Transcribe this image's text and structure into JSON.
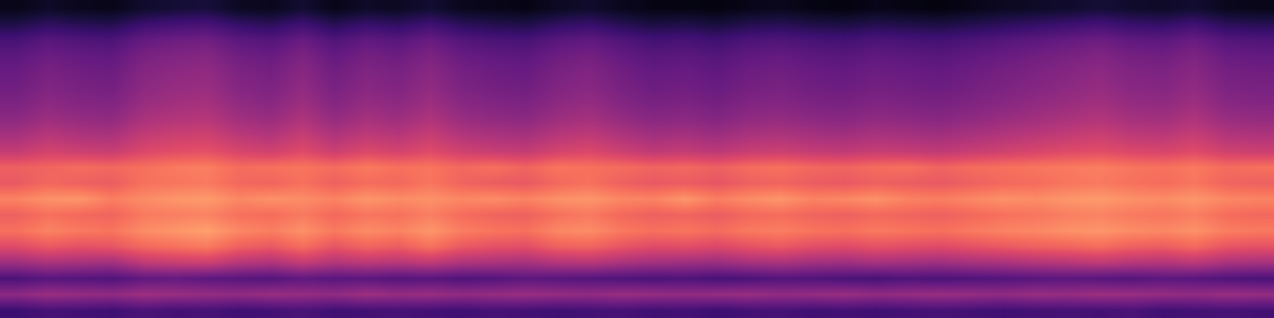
{
  "chart_data": {
    "type": "heatmap",
    "color": "magma",
    "tick_labels": false,
    "zlim": [
      0,
      100
    ],
    "z": [
      [
        20,
        23,
        22,
        21,
        24,
        22,
        23,
        21,
        22,
        24,
        21,
        22,
        23,
        22,
        21,
        23,
        22,
        21,
        22,
        23,
        21,
        22,
        20,
        22,
        23,
        21,
        22,
        21,
        22,
        23,
        22,
        21,
        22,
        23,
        22,
        24,
        21,
        22,
        23,
        22
      ],
      [
        40,
        43,
        42,
        41,
        44,
        43,
        42,
        41,
        43,
        42,
        41,
        44,
        42,
        43,
        41,
        42,
        43,
        42,
        41,
        43,
        42,
        41,
        42,
        43,
        41,
        42,
        43,
        41,
        42,
        43,
        42,
        41,
        43,
        42,
        44,
        43,
        42,
        41,
        43,
        42
      ],
      [
        24,
        27,
        26,
        25,
        29,
        30,
        28,
        27,
        26,
        29,
        27,
        28,
        26,
        27,
        25,
        26,
        28,
        27,
        26,
        25,
        24,
        25,
        23,
        24,
        26,
        25,
        24,
        23,
        25,
        24,
        25,
        26,
        27,
        28,
        27,
        26,
        28,
        27,
        25,
        24
      ],
      [
        44,
        47,
        46,
        45,
        52,
        54,
        55,
        50,
        48,
        53,
        49,
        51,
        50,
        52,
        48,
        47,
        46,
        49,
        50,
        47,
        45,
        44,
        43,
        46,
        47,
        45,
        44,
        46,
        45,
        44,
        46,
        47,
        49,
        50,
        52,
        50,
        49,
        51,
        47,
        46
      ],
      [
        60,
        64,
        62,
        63,
        68,
        70,
        72,
        66,
        64,
        69,
        63,
        67,
        65,
        70,
        64,
        62,
        61,
        66,
        67,
        63,
        60,
        61,
        59,
        62,
        64,
        61,
        60,
        62,
        61,
        60,
        62,
        64,
        66,
        67,
        69,
        66,
        65,
        68,
        63,
        62
      ],
      [
        70,
        74,
        72,
        71,
        76,
        78,
        80,
        75,
        73,
        77,
        72,
        76,
        74,
        78,
        73,
        71,
        70,
        75,
        76,
        72,
        70,
        71,
        69,
        72,
        73,
        71,
        70,
        72,
        71,
        70,
        72,
        74,
        75,
        77,
        78,
        76,
        75,
        77,
        73,
        72
      ],
      [
        66,
        70,
        68,
        67,
        72,
        73,
        74,
        70,
        69,
        72,
        68,
        71,
        70,
        73,
        69,
        67,
        66,
        70,
        72,
        68,
        66,
        67,
        65,
        68,
        69,
        67,
        66,
        68,
        67,
        66,
        68,
        70,
        71,
        73,
        74,
        72,
        71,
        73,
        69,
        68
      ],
      [
        74,
        77,
        78,
        73,
        76,
        78,
        79,
        75,
        77,
        76,
        74,
        78,
        76,
        77,
        75,
        76,
        74,
        77,
        78,
        75,
        74,
        78,
        73,
        76,
        78,
        74,
        75,
        77,
        74,
        73,
        75,
        77,
        76,
        78,
        79,
        77,
        76,
        78,
        75,
        74
      ],
      [
        64,
        68,
        66,
        65,
        70,
        71,
        72,
        68,
        67,
        70,
        66,
        69,
        68,
        71,
        67,
        65,
        64,
        68,
        70,
        66,
        64,
        65,
        63,
        66,
        67,
        65,
        64,
        66,
        65,
        64,
        66,
        68,
        69,
        71,
        72,
        70,
        69,
        71,
        67,
        66
      ],
      [
        66,
        67,
        69,
        68,
        70,
        72,
        73,
        69,
        70,
        71,
        69,
        72,
        70,
        71,
        68,
        70,
        67,
        71,
        70,
        69,
        67,
        68,
        66,
        69,
        70,
        68,
        67,
        69,
        70,
        67,
        69,
        70,
        71,
        72,
        73,
        71,
        70,
        72,
        69,
        70
      ],
      [
        53,
        57,
        55,
        54,
        59,
        61,
        62,
        58,
        56,
        60,
        55,
        59,
        57,
        60,
        56,
        54,
        53,
        57,
        59,
        55,
        52,
        53,
        51,
        54,
        55,
        53,
        52,
        54,
        53,
        52,
        54,
        56,
        58,
        60,
        61,
        59,
        58,
        60,
        56,
        55
      ],
      [
        46,
        50,
        48,
        47,
        53,
        55,
        56,
        51,
        49,
        54,
        48,
        52,
        50,
        54,
        49,
        47,
        46,
        50,
        52,
        48,
        45,
        46,
        44,
        47,
        48,
        46,
        45,
        47,
        46,
        45,
        47,
        49,
        51,
        53,
        55,
        52,
        51,
        54,
        49,
        48
      ],
      [
        40,
        44,
        42,
        41,
        47,
        49,
        50,
        45,
        43,
        48,
        42,
        46,
        44,
        48,
        43,
        41,
        40,
        44,
        46,
        42,
        39,
        40,
        38,
        41,
        42,
        40,
        39,
        41,
        40,
        39,
        41,
        43,
        45,
        47,
        49,
        46,
        45,
        48,
        43,
        42
      ],
      [
        36,
        40,
        38,
        37,
        43,
        45,
        46,
        41,
        39,
        44,
        38,
        42,
        40,
        44,
        39,
        37,
        36,
        40,
        42,
        38,
        35,
        36,
        34,
        37,
        38,
        36,
        35,
        37,
        36,
        35,
        37,
        39,
        41,
        43,
        45,
        42,
        41,
        44,
        39,
        38
      ],
      [
        33,
        37,
        35,
        34,
        40,
        42,
        43,
        38,
        36,
        41,
        35,
        39,
        37,
        41,
        36,
        34,
        33,
        37,
        39,
        35,
        32,
        33,
        31,
        34,
        35,
        33,
        32,
        34,
        33,
        32,
        34,
        36,
        38,
        40,
        42,
        39,
        38,
        41,
        36,
        35
      ],
      [
        31,
        35,
        33,
        32,
        38,
        40,
        41,
        36,
        34,
        39,
        33,
        37,
        35,
        39,
        34,
        32,
        31,
        35,
        37,
        33,
        30,
        31,
        29,
        32,
        33,
        31,
        30,
        32,
        31,
        30,
        32,
        34,
        36,
        38,
        40,
        37,
        36,
        39,
        34,
        33
      ],
      [
        28,
        32,
        30,
        29,
        35,
        37,
        38,
        33,
        31,
        36,
        30,
        34,
        32,
        36,
        31,
        29,
        28,
        32,
        34,
        30,
        27,
        28,
        26,
        29,
        30,
        28,
        27,
        29,
        28,
        27,
        29,
        31,
        33,
        35,
        37,
        34,
        33,
        36,
        31,
        30
      ],
      [
        23,
        27,
        25,
        24,
        30,
        32,
        33,
        28,
        26,
        31,
        25,
        29,
        27,
        31,
        26,
        24,
        23,
        27,
        29,
        25,
        22,
        23,
        21,
        24,
        25,
        23,
        22,
        24,
        23,
        22,
        24,
        26,
        28,
        30,
        32,
        29,
        28,
        31,
        26,
        25
      ],
      [
        13,
        17,
        15,
        14,
        20,
        22,
        23,
        18,
        16,
        21,
        15,
        19,
        17,
        21,
        16,
        14,
        13,
        17,
        19,
        15,
        12,
        13,
        11,
        14,
        15,
        13,
        12,
        14,
        13,
        12,
        14,
        16,
        18,
        20,
        22,
        19,
        18,
        21,
        16,
        15
      ],
      [
        4,
        7,
        5,
        4,
        8,
        10,
        11,
        6,
        5,
        9,
        4,
        7,
        6,
        9,
        5,
        4,
        3,
        6,
        8,
        5,
        3,
        3,
        2,
        4,
        5,
        3,
        2,
        4,
        3,
        2,
        4,
        6,
        7,
        8,
        10,
        8,
        7,
        9,
        5,
        4
      ]
    ]
  }
}
